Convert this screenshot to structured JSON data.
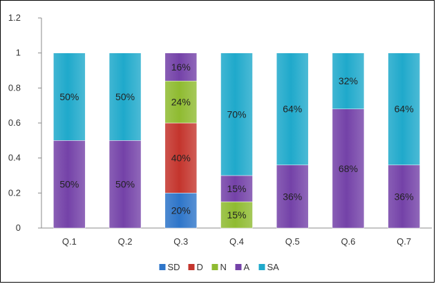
{
  "chart_data": {
    "type": "bar",
    "stacked": true,
    "categories": [
      "Q.1",
      "Q.2",
      "Q.3",
      "Q.4",
      "Q.5",
      "Q.6",
      "Q.7"
    ],
    "series": [
      {
        "name": "SD",
        "color": "#2e75c9",
        "values": [
          0,
          0,
          0.2,
          0,
          0,
          0,
          0
        ],
        "labels": [
          "",
          "",
          "20%",
          "",
          "",
          "",
          ""
        ]
      },
      {
        "name": "D",
        "color": "#c4352d",
        "values": [
          0,
          0,
          0.4,
          0,
          0,
          0,
          0
        ],
        "labels": [
          "",
          "",
          "40%",
          "",
          "",
          "",
          ""
        ]
      },
      {
        "name": "N",
        "color": "#8fbb31",
        "values": [
          0,
          0,
          0.24,
          0.15,
          0,
          0,
          0
        ],
        "labels": [
          "",
          "",
          "24%",
          "15%",
          "",
          "",
          ""
        ]
      },
      {
        "name": "A",
        "color": "#7442a8",
        "values": [
          0.5,
          0.5,
          0.16,
          0.15,
          0.36,
          0.68,
          0.36
        ],
        "labels": [
          "50%",
          "50%",
          "16%",
          "15%",
          "36%",
          "68%",
          "36%"
        ]
      },
      {
        "name": "SA",
        "color": "#1fa9cb",
        "values": [
          0.5,
          0.5,
          0,
          0.7,
          0.64,
          0.32,
          0.64
        ],
        "labels": [
          "50%",
          "50%",
          "",
          "70%",
          "64%",
          "32%",
          "64%"
        ]
      }
    ],
    "yticks": [
      "0",
      "0.2",
      "0.4",
      "0.6",
      "0.8",
      "1",
      "1.2"
    ],
    "ylim": [
      0,
      1.2
    ],
    "grid": false,
    "legend_position": "bottom",
    "title": "",
    "xlabel": "",
    "ylabel": ""
  }
}
